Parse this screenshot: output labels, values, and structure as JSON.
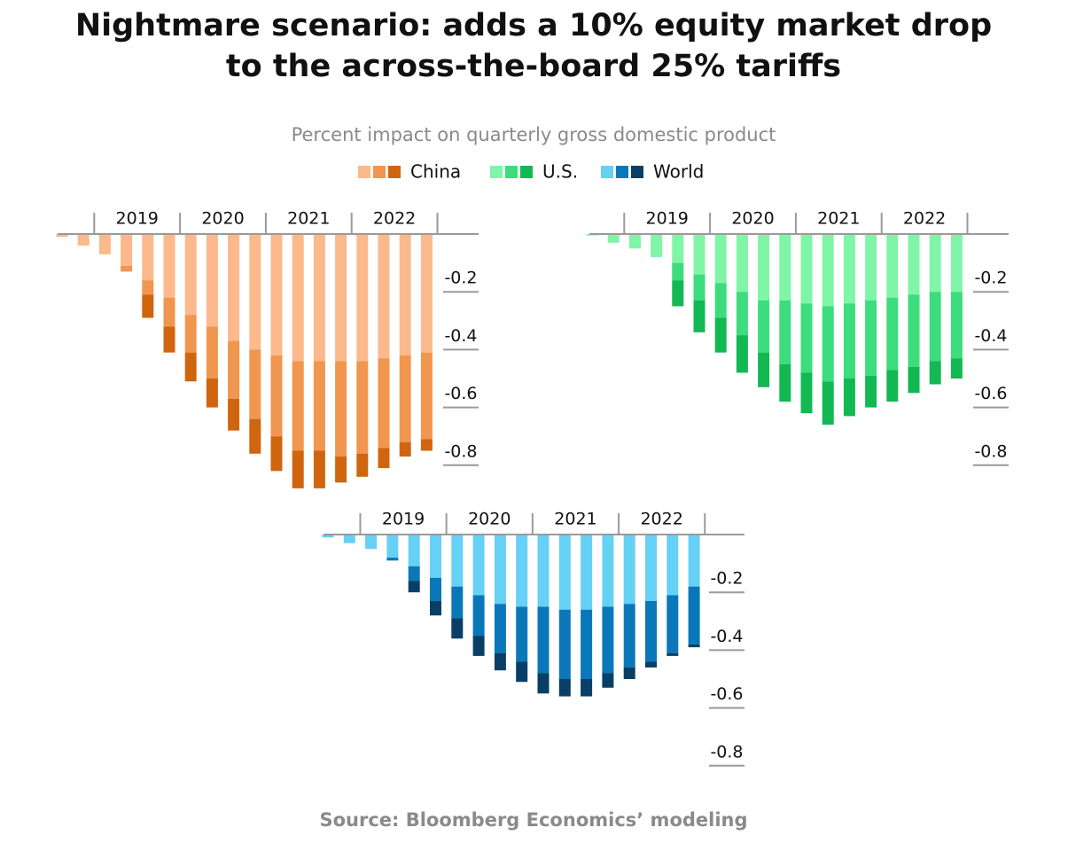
{
  "title": "Nightmare scenario: adds a 10% equity market drop",
  "title_line2": "to the across-the-board 25% tariffs",
  "subtitle": "Percent impact on quarterly gross domestic product",
  "source": "Source: Bloomberg Economics’ modeling",
  "chart_data": [
    {
      "type": "bar",
      "stacked": true,
      "name": "China",
      "years": [
        "2019",
        "2020",
        "2021",
        "2022"
      ],
      "ylim": [
        -0.9,
        0
      ],
      "yticks": [
        -0.2,
        -0.4,
        -0.6,
        -0.8
      ],
      "series": [
        {
          "color": "#fbb98c",
          "values": [
            -0.01,
            -0.04,
            -0.07,
            -0.11,
            -0.16,
            -0.22,
            -0.28,
            -0.32,
            -0.37,
            -0.4,
            -0.42,
            -0.44,
            -0.44,
            -0.44,
            -0.44,
            -0.43,
            -0.42,
            -0.41
          ]
        },
        {
          "color": "#f0964e",
          "values": [
            0,
            0,
            0,
            -0.02,
            -0.05,
            -0.1,
            -0.13,
            -0.18,
            -0.2,
            -0.24,
            -0.28,
            -0.31,
            -0.31,
            -0.33,
            -0.32,
            -0.31,
            -0.3,
            -0.3
          ]
        },
        {
          "color": "#d0650f",
          "values": [
            0,
            0,
            0,
            0,
            -0.08,
            -0.09,
            -0.1,
            -0.1,
            -0.11,
            -0.12,
            -0.12,
            -0.13,
            -0.13,
            -0.09,
            -0.08,
            -0.07,
            -0.05,
            -0.04
          ]
        }
      ]
    },
    {
      "type": "bar",
      "stacked": true,
      "name": "U.S.",
      "years": [
        "2019",
        "2020",
        "2021",
        "2022"
      ],
      "ylim": [
        -0.9,
        0
      ],
      "yticks": [
        -0.2,
        -0.4,
        -0.6,
        -0.8
      ],
      "series": [
        {
          "color": "#7ff5a8",
          "values": [
            -0.005,
            -0.03,
            -0.05,
            -0.08,
            -0.1,
            -0.14,
            -0.17,
            -0.2,
            -0.23,
            -0.23,
            -0.24,
            -0.25,
            -0.24,
            -0.23,
            -0.22,
            -0.21,
            -0.2,
            -0.2
          ]
        },
        {
          "color": "#3ddc7c",
          "values": [
            0,
            0,
            0,
            0,
            -0.06,
            -0.09,
            -0.12,
            -0.15,
            -0.18,
            -0.22,
            -0.24,
            -0.26,
            -0.26,
            -0.26,
            -0.25,
            -0.25,
            -0.24,
            -0.23
          ]
        },
        {
          "color": "#12b851",
          "values": [
            0,
            0,
            0,
            0,
            -0.09,
            -0.11,
            -0.12,
            -0.13,
            -0.12,
            -0.13,
            -0.14,
            -0.15,
            -0.13,
            -0.11,
            -0.11,
            -0.09,
            -0.08,
            -0.07
          ]
        }
      ]
    },
    {
      "type": "bar",
      "stacked": true,
      "name": "World",
      "years": [
        "2019",
        "2020",
        "2021",
        "2022"
      ],
      "ylim": [
        -0.9,
        0
      ],
      "yticks": [
        -0.2,
        -0.4,
        -0.6,
        -0.8
      ],
      "series": [
        {
          "color": "#66d0f5",
          "values": [
            -0.01,
            -0.03,
            -0.05,
            -0.08,
            -0.11,
            -0.15,
            -0.18,
            -0.21,
            -0.24,
            -0.25,
            -0.25,
            -0.26,
            -0.26,
            -0.25,
            -0.24,
            -0.23,
            -0.21,
            -0.18
          ]
        },
        {
          "color": "#0a78b8",
          "values": [
            0,
            0,
            0,
            -0.01,
            -0.05,
            -0.08,
            -0.11,
            -0.14,
            -0.17,
            -0.19,
            -0.23,
            -0.24,
            -0.24,
            -0.23,
            -0.22,
            -0.21,
            -0.2,
            -0.2
          ]
        },
        {
          "color": "#093f66",
          "values": [
            0,
            0,
            0,
            0,
            -0.04,
            -0.05,
            -0.07,
            -0.07,
            -0.06,
            -0.07,
            -0.07,
            -0.06,
            -0.06,
            -0.05,
            -0.04,
            -0.02,
            -0.01,
            -0.01
          ]
        }
      ]
    }
  ]
}
